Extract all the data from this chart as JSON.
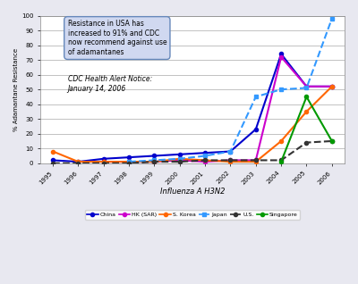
{
  "title": "",
  "xlabel": "Influenza A H3N2",
  "ylabel": "% Adamantane Resistance",
  "xlim": [
    1994.5,
    2006.5
  ],
  "ylim": [
    0,
    100
  ],
  "yticks": [
    0,
    10,
    20,
    30,
    40,
    50,
    60,
    70,
    80,
    90,
    100
  ],
  "xticks": [
    1995,
    1996,
    1997,
    1998,
    1999,
    2000,
    2001,
    2002,
    2003,
    2004,
    2005,
    2006
  ],
  "series": {
    "China": {
      "x": [
        1995,
        1996,
        1997,
        1998,
        1999,
        2000,
        2001,
        2002,
        2003,
        2004,
        2005,
        2006
      ],
      "y": [
        2,
        1,
        3,
        4,
        5,
        6,
        7,
        8,
        23,
        74,
        52,
        52
      ],
      "color": "#0000CC",
      "linestyle": "-",
      "marker": "o",
      "markersize": 3,
      "linewidth": 1.5
    },
    "HK (SAR)": {
      "x": [
        1997,
        1998,
        1999,
        2000,
        2001,
        2002,
        2003,
        2004,
        2005,
        2006
      ],
      "y": [
        1,
        1,
        1,
        2,
        1,
        2,
        2,
        72,
        52,
        52
      ],
      "color": "#CC00CC",
      "linestyle": "-",
      "marker": "o",
      "markersize": 3,
      "linewidth": 1.5
    },
    "S. Korea": {
      "x": [
        1995,
        1996,
        1997,
        1998,
        1999,
        2000,
        2001,
        2002,
        2003,
        2004,
        2005,
        2006
      ],
      "y": [
        8,
        1,
        1,
        1,
        1,
        3,
        2,
        1,
        1,
        15,
        35,
        52
      ],
      "color": "#FF6600",
      "linestyle": "-",
      "marker": "o",
      "markersize": 3,
      "linewidth": 1.5
    },
    "Japan": {
      "x": [
        1998,
        1999,
        2000,
        2001,
        2002,
        2003,
        2004,
        2005,
        2006
      ],
      "y": [
        1,
        2,
        3,
        5,
        8,
        45,
        50,
        51,
        98
      ],
      "color": "#3399FF",
      "linestyle": "--",
      "marker": "s",
      "markersize": 3,
      "linewidth": 1.5
    },
    "U.S.": {
      "x": [
        1995,
        1996,
        1997,
        1998,
        1999,
        2000,
        2001,
        2002,
        2003,
        2004,
        2005,
        2006
      ],
      "y": [
        0,
        0,
        0,
        0,
        1,
        1,
        2,
        2,
        2,
        2,
        14,
        15
      ],
      "color": "#333333",
      "linestyle": "--",
      "marker": "o",
      "markersize": 3,
      "linewidth": 1.5
    },
    "Singapore": {
      "x": [
        2004,
        2005,
        2006
      ],
      "y": [
        1,
        45,
        15
      ],
      "color": "#009900",
      "linestyle": "-",
      "marker": "o",
      "markersize": 3,
      "linewidth": 1.5
    }
  },
  "ann_text1": "Resistance in USA has\nincreased to 91% and CDC\nnow recommend against use\nof adamantanes",
  "ann_text2": "CDC Health Alert Notice:\nJanuary 14, 2006",
  "bg_color": "#E8E8F0",
  "plot_bg": "#FFFFFF",
  "grid_color": "#AAAAAA",
  "box_facecolor": "#D0D8F0",
  "box_edgecolor": "#6688BB"
}
